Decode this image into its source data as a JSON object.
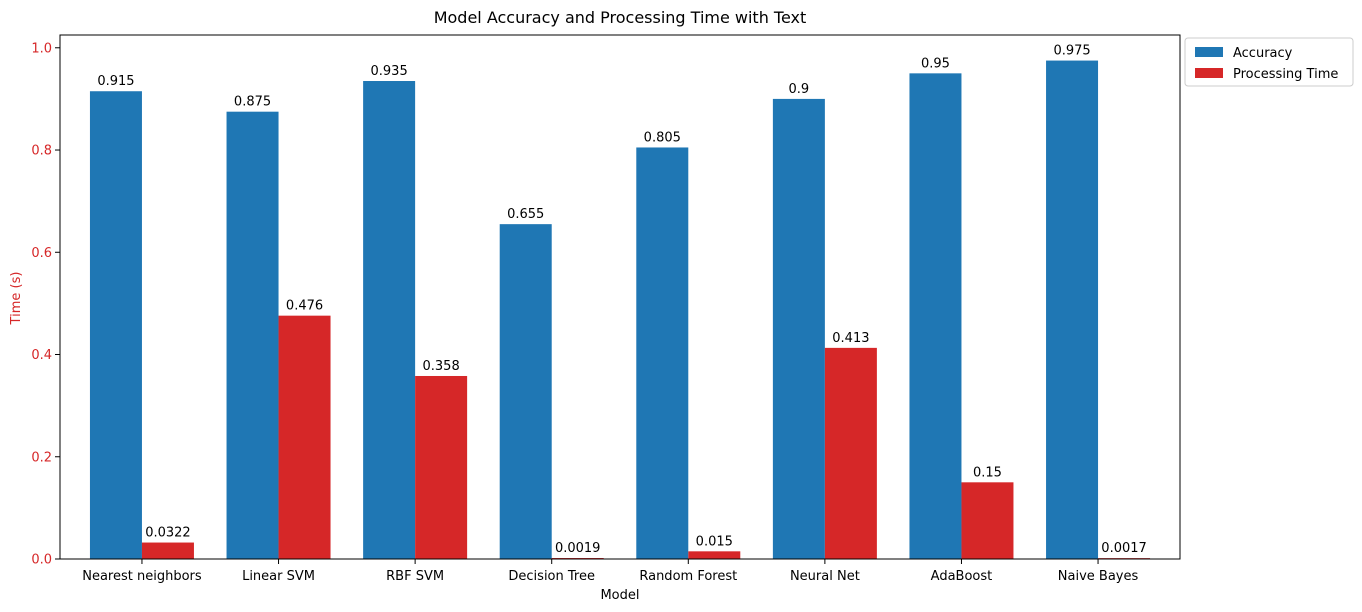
{
  "chart_data": {
    "type": "bar",
    "title": "Model Accuracy and Processing Time with Text",
    "xlabel": "Model",
    "ylabel": "Time (s)",
    "ylim": [
      0,
      1.025
    ],
    "yticks": [
      "0.0",
      "0.2",
      "0.4",
      "0.6",
      "0.8",
      "1.0"
    ],
    "grid": false,
    "legend_placement": "outside-top-right",
    "categories": [
      "Nearest neighbors",
      "Linear SVM",
      "RBF SVM",
      "Decision Tree",
      "Random Forest",
      "Neural Net",
      "AdaBoost",
      "Naive Bayes"
    ],
    "series": [
      {
        "name": "Accuracy",
        "color": "#1f77b4",
        "values": [
          0.915,
          0.875,
          0.935,
          0.655,
          0.805,
          0.9,
          0.95,
          0.975
        ],
        "labels": [
          "0.915",
          "0.875",
          "0.935",
          "0.655",
          "0.805",
          "0.9",
          "0.95",
          "0.975"
        ]
      },
      {
        "name": "Processing Time",
        "color": "#d62728",
        "values": [
          0.0322,
          0.476,
          0.358,
          0.0019,
          0.015,
          0.413,
          0.15,
          0.0017
        ],
        "labels": [
          "0.0322",
          "0.476",
          "0.358",
          "0.0019",
          "0.015",
          "0.413",
          "0.15",
          "0.0017"
        ]
      }
    ],
    "ylabel_color": "#d62728"
  }
}
